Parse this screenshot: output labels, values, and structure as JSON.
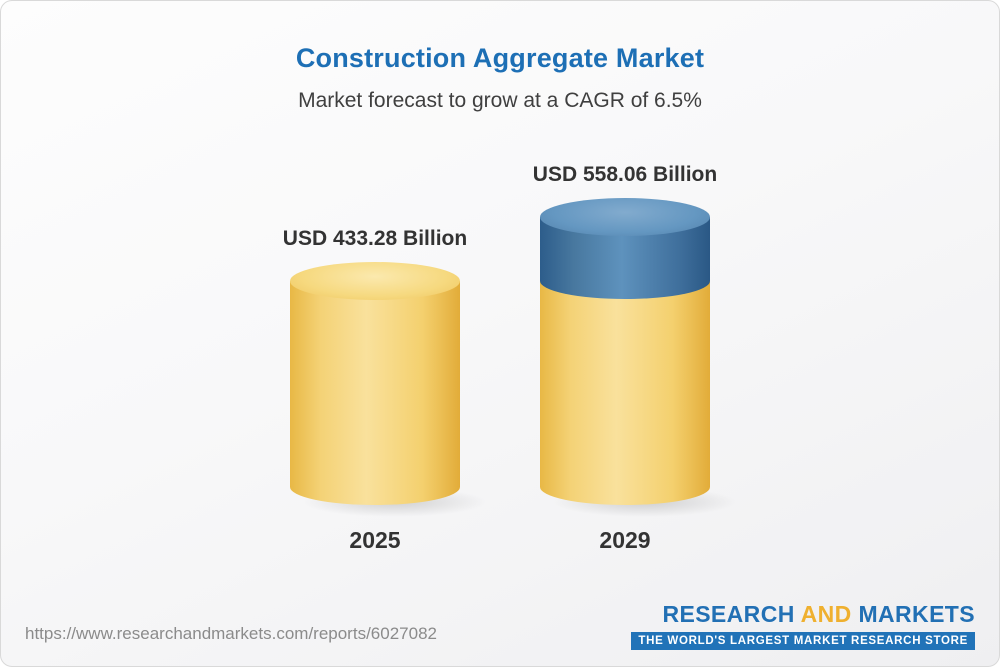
{
  "header": {
    "title": "Construction Aggregate Market",
    "subtitle": "Market forecast to grow at a CAGR of 6.5%"
  },
  "chart_data": {
    "type": "bar",
    "categories": [
      "2025",
      "2029"
    ],
    "values": [
      433.28,
      558.06
    ],
    "value_labels": [
      "USD 433.28 Billion",
      "USD 558.06 Billion"
    ],
    "title": "Construction Aggregate Market",
    "subtitle": "Market forecast to grow at a CAGR of 6.5%",
    "unit": "USD Billion",
    "cagr": "6.5%",
    "legend_position": "none",
    "grid": false,
    "colors": {
      "base_segment": "#F2CB63",
      "growth_segment": "#4A7BA6",
      "title": "#1D6FB5",
      "text": "#333333"
    }
  },
  "footer": {
    "url": "https://www.researchandmarkets.com/reports/6027082",
    "logo": {
      "part_research": "RESEARCH ",
      "part_and": "AND",
      "part_markets": " MARKETS",
      "tagline": "THE WORLD'S LARGEST MARKET RESEARCH STORE"
    }
  }
}
